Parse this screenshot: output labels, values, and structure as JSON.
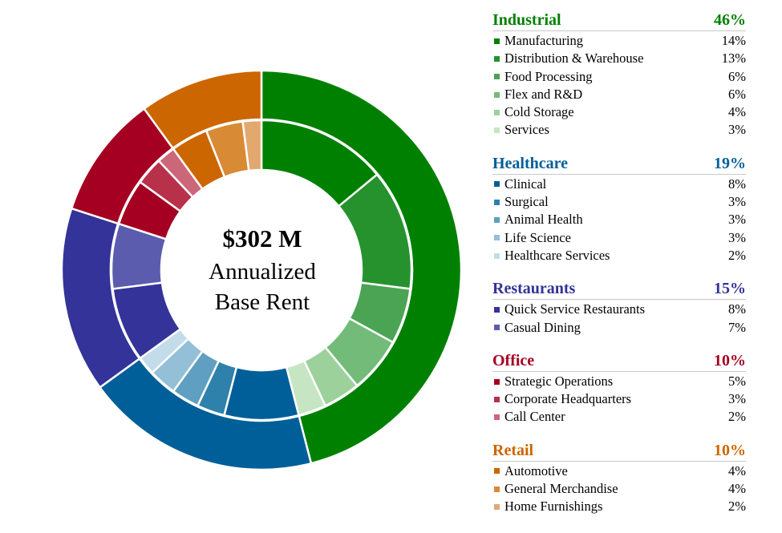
{
  "center": {
    "value": "$302 M",
    "line1": "Annualized",
    "line2": "Base Rent"
  },
  "chart_data": {
    "type": "pie",
    "subtype": "nested-donut",
    "unit": "percent",
    "groups": [
      {
        "name": "Industrial",
        "value": 46,
        "color": "#008000",
        "items": [
          {
            "name": "Manufacturing",
            "value": 14,
            "color": "#008000"
          },
          {
            "name": "Distribution & Warehouse",
            "value": 13,
            "color": "#26922e"
          },
          {
            "name": "Food Processing",
            "value": 6,
            "color": "#4aa454"
          },
          {
            "name": "Flex and R&D",
            "value": 6,
            "color": "#72bb78"
          },
          {
            "name": "Cold Storage",
            "value": 4,
            "color": "#9cd19c"
          },
          {
            "name": "Services",
            "value": 3,
            "color": "#c6e5c2"
          }
        ]
      },
      {
        "name": "Healthcare",
        "value": 19,
        "color": "#005f99",
        "items": [
          {
            "name": "Clinical",
            "value": 8,
            "color": "#005f99"
          },
          {
            "name": "Surgical",
            "value": 3,
            "color": "#2e81aa"
          },
          {
            "name": "Animal Health",
            "value": 3,
            "color": "#5f9fc1"
          },
          {
            "name": "Life Science",
            "value": 3,
            "color": "#93bfd7"
          },
          {
            "name": "Healthcare Services",
            "value": 2,
            "color": "#c3dcea"
          }
        ]
      },
      {
        "name": "Restaurants",
        "value": 15,
        "color": "#333399",
        "items": [
          {
            "name": "Quick Service Restaurants",
            "value": 8,
            "color": "#333399"
          },
          {
            "name": "Casual Dining",
            "value": 7,
            "color": "#5c5cae"
          }
        ]
      },
      {
        "name": "Office",
        "value": 10,
        "color": "#a50021",
        "items": [
          {
            "name": "Strategic Operations",
            "value": 5,
            "color": "#a50021"
          },
          {
            "name": "Corporate Headquarters",
            "value": 3,
            "color": "#b8314a"
          },
          {
            "name": "Call Center",
            "value": 2,
            "color": "#cc6679"
          }
        ]
      },
      {
        "name": "Retail",
        "value": 10,
        "color": "#cc6600",
        "items": [
          {
            "name": "Automotive",
            "value": 4,
            "color": "#cc6600"
          },
          {
            "name": "General Merchandise",
            "value": 4,
            "color": "#d98a35"
          },
          {
            "name": "Home Furnishings",
            "value": 2,
            "color": "#e2a86e"
          }
        ]
      }
    ]
  }
}
